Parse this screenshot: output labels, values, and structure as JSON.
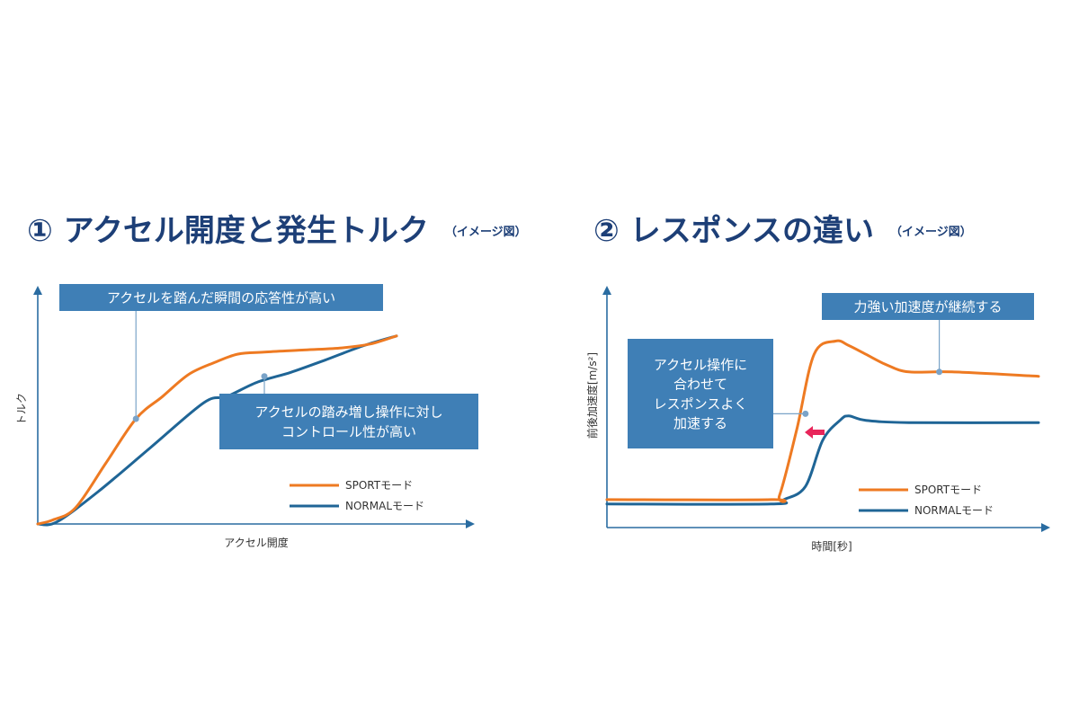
{
  "titles": {
    "chart1": {
      "main": "① アクセル開度と発生トルク",
      "sub": "（イメージ図）"
    },
    "chart2": {
      "main": "② レスポンスの違い",
      "sub": "（イメージ図）"
    }
  },
  "colors": {
    "sport": "#ee7a22",
    "normal": "#1f6596",
    "axis": "#2a6ca1",
    "box": "#3f7fb6",
    "box_text": "#ffffff",
    "arrow": "#e8255a"
  },
  "chart_data": [
    {
      "type": "line",
      "xlabel": "アクセル開度",
      "ylabel": "トルク",
      "xlim": [
        0,
        100
      ],
      "ylim": [
        0,
        100
      ],
      "series": [
        {
          "name": "SPORTモード",
          "x": [
            0,
            4,
            10,
            18,
            26,
            33,
            40,
            47,
            53,
            60,
            70,
            80,
            88,
            95
          ],
          "y": [
            0,
            2,
            8,
            30,
            52,
            63,
            74,
            80,
            84,
            85,
            86,
            87,
            89,
            93
          ]
        },
        {
          "name": "NORMALモード",
          "x": [
            0,
            5,
            16,
            30,
            44,
            50,
            58,
            67,
            76,
            86,
            95
          ],
          "y": [
            0,
            1,
            16,
            38,
            60,
            63,
            70,
            75,
            81,
            88,
            93
          ]
        }
      ],
      "annotations": [
        {
          "text": "アクセルを踏んだ瞬間の応答性が高い",
          "series": "SPORTモード",
          "x": 26,
          "y": 52
        },
        {
          "text": "アクセルの踏み増し操作に対し\nコントロール性が高い",
          "series": "NORMALモード",
          "x": 60,
          "y": 73
        }
      ]
    },
    {
      "type": "line",
      "xlabel": "時間[秒]",
      "ylabel": "前後加速度[m/s²]",
      "xlim": [
        0,
        100
      ],
      "ylim": [
        0,
        100
      ],
      "series": [
        {
          "name": "SPORTモード",
          "x": [
            0,
            38,
            40,
            44,
            48,
            53,
            56,
            60,
            65,
            70,
            80,
            100
          ],
          "y": [
            18,
            18,
            20,
            50,
            84,
            90,
            88,
            84,
            79,
            76,
            76,
            74
          ]
        },
        {
          "name": "NORMALモード",
          "x": [
            0,
            38,
            41,
            46,
            50,
            54,
            56,
            60,
            70,
            100
          ],
          "y": [
            16,
            16,
            18,
            24,
            45,
            54,
            56,
            54,
            53,
            53
          ]
        }
      ],
      "annotations": [
        {
          "text": "アクセル操作に\n合わせて\nレスポンスよく\n加速する",
          "series": "SPORTモード",
          "x": 46,
          "y": 57
        },
        {
          "text": "力強い加速度が継続する",
          "series": "SPORTモード",
          "x": 77,
          "y": 76
        }
      ]
    }
  ]
}
